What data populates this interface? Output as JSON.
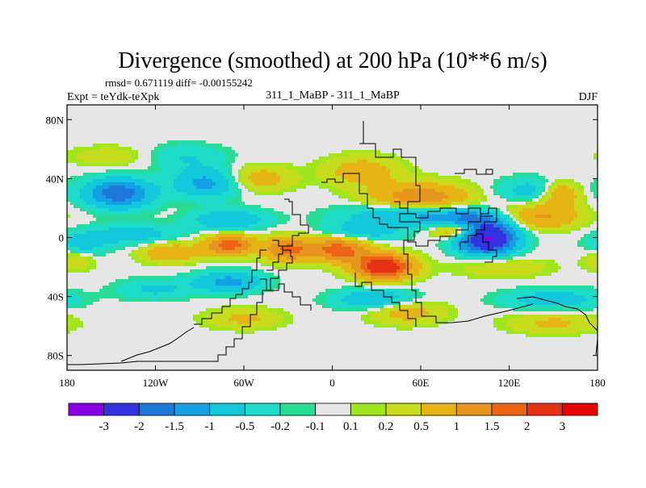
{
  "chart_data": {
    "type": "heatmap",
    "title": "Divergence (smoothed) at 200 hPa (10**6 m/s)",
    "stats_text": "rmsd= 0.671119 diff= -0.00155242",
    "left_label": "Expt = teYdk-teXpk",
    "center_label": "311_1_MaBP - 311_1_MaBP",
    "right_label": "DJF",
    "x_tick_labels": [
      "180",
      "120W",
      "60W",
      "0",
      "60E",
      "120E",
      "180"
    ],
    "x_tick_values": [
      -180,
      -120,
      -60,
      0,
      60,
      120,
      180
    ],
    "y_tick_labels": [
      "80N",
      "40N",
      "0",
      "40S",
      "80S"
    ],
    "y_tick_values": [
      80,
      40,
      0,
      -40,
      -80
    ],
    "xlim": [
      -180,
      180
    ],
    "ylim": [
      -90,
      90
    ],
    "colorbar_levels": [
      "-3",
      "-2",
      "-1.5",
      "-1",
      "-0.5",
      "-0.2",
      "-0.1",
      "0.1",
      "0.2",
      "0.5",
      "1",
      "1.5",
      "2",
      "3"
    ],
    "level_values": [
      -3,
      -2,
      -1.5,
      -1,
      -0.5,
      -0.2,
      -0.1,
      0.1,
      0.2,
      0.5,
      1,
      1.5,
      2,
      3
    ],
    "colorbar_colors": [
      "#8a00e6",
      "#3232e0",
      "#1e78dc",
      "#14a0e6",
      "#14c8dc",
      "#1edcc8",
      "#28dc96",
      "#e6e6e6",
      "#a0e61e",
      "#c8dc1e",
      "#e6b414",
      "#e6961e",
      "#ec6414",
      "#e63214",
      "#e60000"
    ],
    "field_features": [
      {
        "lon": 105,
        "lat": 0,
        "amp": -3.2,
        "slon": 14,
        "slat": 8
      },
      {
        "lon": 88,
        "lat": 12,
        "amp": -1.2,
        "slon": 20,
        "slat": 5
      },
      {
        "lon": 50,
        "lat": 16,
        "amp": -1.0,
        "slon": 30,
        "slat": 5
      },
      {
        "lon": -145,
        "lat": 30,
        "amp": -1.9,
        "slon": 16,
        "slat": 7
      },
      {
        "lon": -85,
        "lat": 37,
        "amp": -1.2,
        "slon": 16,
        "slat": 7
      },
      {
        "lon": -70,
        "lat": 12,
        "amp": -1.0,
        "slon": 18,
        "slat": 5
      },
      {
        "lon": -135,
        "lat": 2,
        "amp": -0.8,
        "slon": 22,
        "slat": 5
      },
      {
        "lon": 20,
        "lat": 4,
        "amp": -0.8,
        "slon": 20,
        "slat": 5
      },
      {
        "lon": -70,
        "lat": -30,
        "amp": -1.2,
        "slon": 16,
        "slat": 5
      },
      {
        "lon": 30,
        "lat": -42,
        "amp": -1.0,
        "slon": 20,
        "slat": 5
      },
      {
        "lon": 150,
        "lat": -42,
        "amp": -0.8,
        "slon": 24,
        "slat": 5
      },
      {
        "lon": -120,
        "lat": -35,
        "amp": -0.6,
        "slon": 18,
        "slat": 5
      },
      {
        "lon": 140,
        "lat": 32,
        "amp": -0.8,
        "slon": 20,
        "slat": 6
      },
      {
        "lon": -100,
        "lat": 55,
        "amp": -0.5,
        "slon": 20,
        "slat": 6
      },
      {
        "lon": -170,
        "lat": -5,
        "amp": -0.7,
        "slon": 12,
        "slat": 6
      },
      {
        "lon": 35,
        "lat": -20,
        "amp": 2.6,
        "slon": 14,
        "slat": 6
      },
      {
        "lon": 5,
        "lat": -8,
        "amp": 1.8,
        "slon": 14,
        "slat": 6
      },
      {
        "lon": -30,
        "lat": -8,
        "amp": 1.6,
        "slon": 12,
        "slat": 6
      },
      {
        "lon": -70,
        "lat": -5,
        "amp": 1.8,
        "slon": 12,
        "slat": 5
      },
      {
        "lon": -110,
        "lat": -10,
        "amp": 1.0,
        "slon": 14,
        "slat": 5
      },
      {
        "lon": 85,
        "lat": 5,
        "amp": 1.6,
        "slon": 12,
        "slat": 4
      },
      {
        "lon": 60,
        "lat": 27,
        "amp": 1.4,
        "slon": 24,
        "slat": 7
      },
      {
        "lon": 140,
        "lat": 14,
        "amp": 1.1,
        "slon": 20,
        "slat": 6
      },
      {
        "lon": 155,
        "lat": 30,
        "amp": 1.4,
        "slon": 10,
        "slat": 6
      },
      {
        "lon": 20,
        "lat": 45,
        "amp": 0.8,
        "slon": 18,
        "slat": 7
      },
      {
        "lon": -50,
        "lat": 40,
        "amp": 0.8,
        "slon": 16,
        "slat": 6
      },
      {
        "lon": -175,
        "lat": -15,
        "amp": 0.6,
        "slon": 10,
        "slat": 5
      },
      {
        "lon": 50,
        "lat": -50,
        "amp": 0.8,
        "slon": 18,
        "slat": 6
      },
      {
        "lon": 150,
        "lat": -58,
        "amp": 0.6,
        "slon": 22,
        "slat": 5
      },
      {
        "lon": -60,
        "lat": -55,
        "amp": 0.6,
        "slon": 18,
        "slat": 5
      },
      {
        "lon": 115,
        "lat": -20,
        "amp": 0.5,
        "slon": 22,
        "slat": 5
      },
      {
        "lon": -150,
        "lat": 55,
        "amp": 0.4,
        "slon": 20,
        "slat": 5
      }
    ]
  }
}
